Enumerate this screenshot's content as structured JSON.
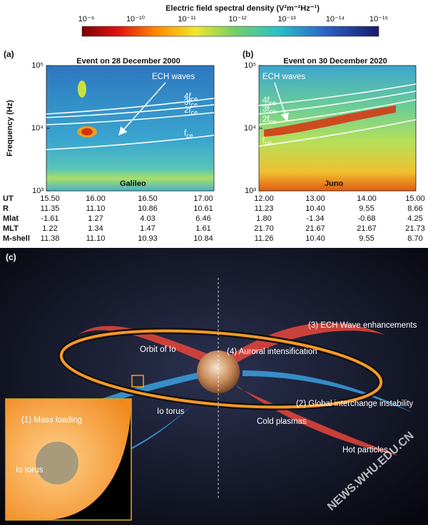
{
  "colorbar": {
    "title": "Electric field spectral density",
    "unit": "(V²m⁻²Hz⁻¹)",
    "ticks": [
      "10⁻⁹",
      "10⁻¹⁰",
      "10⁻¹¹",
      "10⁻¹²",
      "10⁻¹³",
      "10⁻¹⁴",
      "10⁻¹⁵"
    ]
  },
  "ylabel": "Frequency (Hz)",
  "table_rows": [
    "UT",
    "R",
    "Mlat",
    "MLT",
    "M-shell"
  ],
  "panels": [
    {
      "label": "(a)",
      "title": "Event on 28 December 2000",
      "yticks": [
        "10⁵",
        "10⁴",
        "10³"
      ],
      "annotation": "ECH waves",
      "harmonics": [
        {
          "base": "4f",
          "sub": "ce"
        },
        {
          "base": "3f",
          "sub": "ce"
        },
        {
          "base": "2f",
          "sub": "ce"
        },
        {
          "base": "f",
          "sub": "ce"
        }
      ],
      "spacecraft": "Galileo",
      "table": [
        [
          "15.50",
          "16.00",
          "16.50",
          "17.00"
        ],
        [
          "11.35",
          "11.10",
          "10.86",
          "10.61"
        ],
        [
          "-1.61",
          "1.27",
          "4.03",
          "6.46"
        ],
        [
          "1.22",
          "1.34",
          "1.47",
          "1.61"
        ],
        [
          "11.38",
          "11.10",
          "10.93",
          "10.84"
        ]
      ]
    },
    {
      "label": "(b)",
      "title": "Event on 30 December 2020",
      "yticks": [
        "10⁵",
        "10⁴",
        "10³"
      ],
      "annotation": "ECH waves",
      "harmonics": [
        {
          "base": "4f",
          "sub": "ce"
        },
        {
          "base": "3f",
          "sub": "ce"
        },
        {
          "base": "2f",
          "sub": "ce"
        },
        {
          "base": "f",
          "sub": "ce"
        }
      ],
      "spacecraft": "Juno",
      "table": [
        [
          "12.00",
          "13.00",
          "14.00",
          "15.00"
        ],
        [
          "11.23",
          "10.40",
          "9.55",
          "8.66"
        ],
        [
          "1.80",
          "-1.34",
          "-0.68",
          "4.25"
        ],
        [
          "21.70",
          "21.67",
          "21.67",
          "21.73"
        ],
        [
          "11.26",
          "10.40",
          "9.55",
          "8.70"
        ]
      ]
    }
  ],
  "illustration": {
    "label": "(c)",
    "ech": "(3) ECH Wave enhancements",
    "aurora": "(4) Auroral intensification",
    "orbit": "Orbit of Io",
    "torus": "Io torus",
    "interchange": "(2) Global interchange instability",
    "cold": "Cold plasmas",
    "hot": "Hot particles",
    "inset": {
      "title": "(1) Mass loading",
      "label": "Io torus"
    },
    "watermark": "NEWS.WHU.EDU.CN"
  }
}
